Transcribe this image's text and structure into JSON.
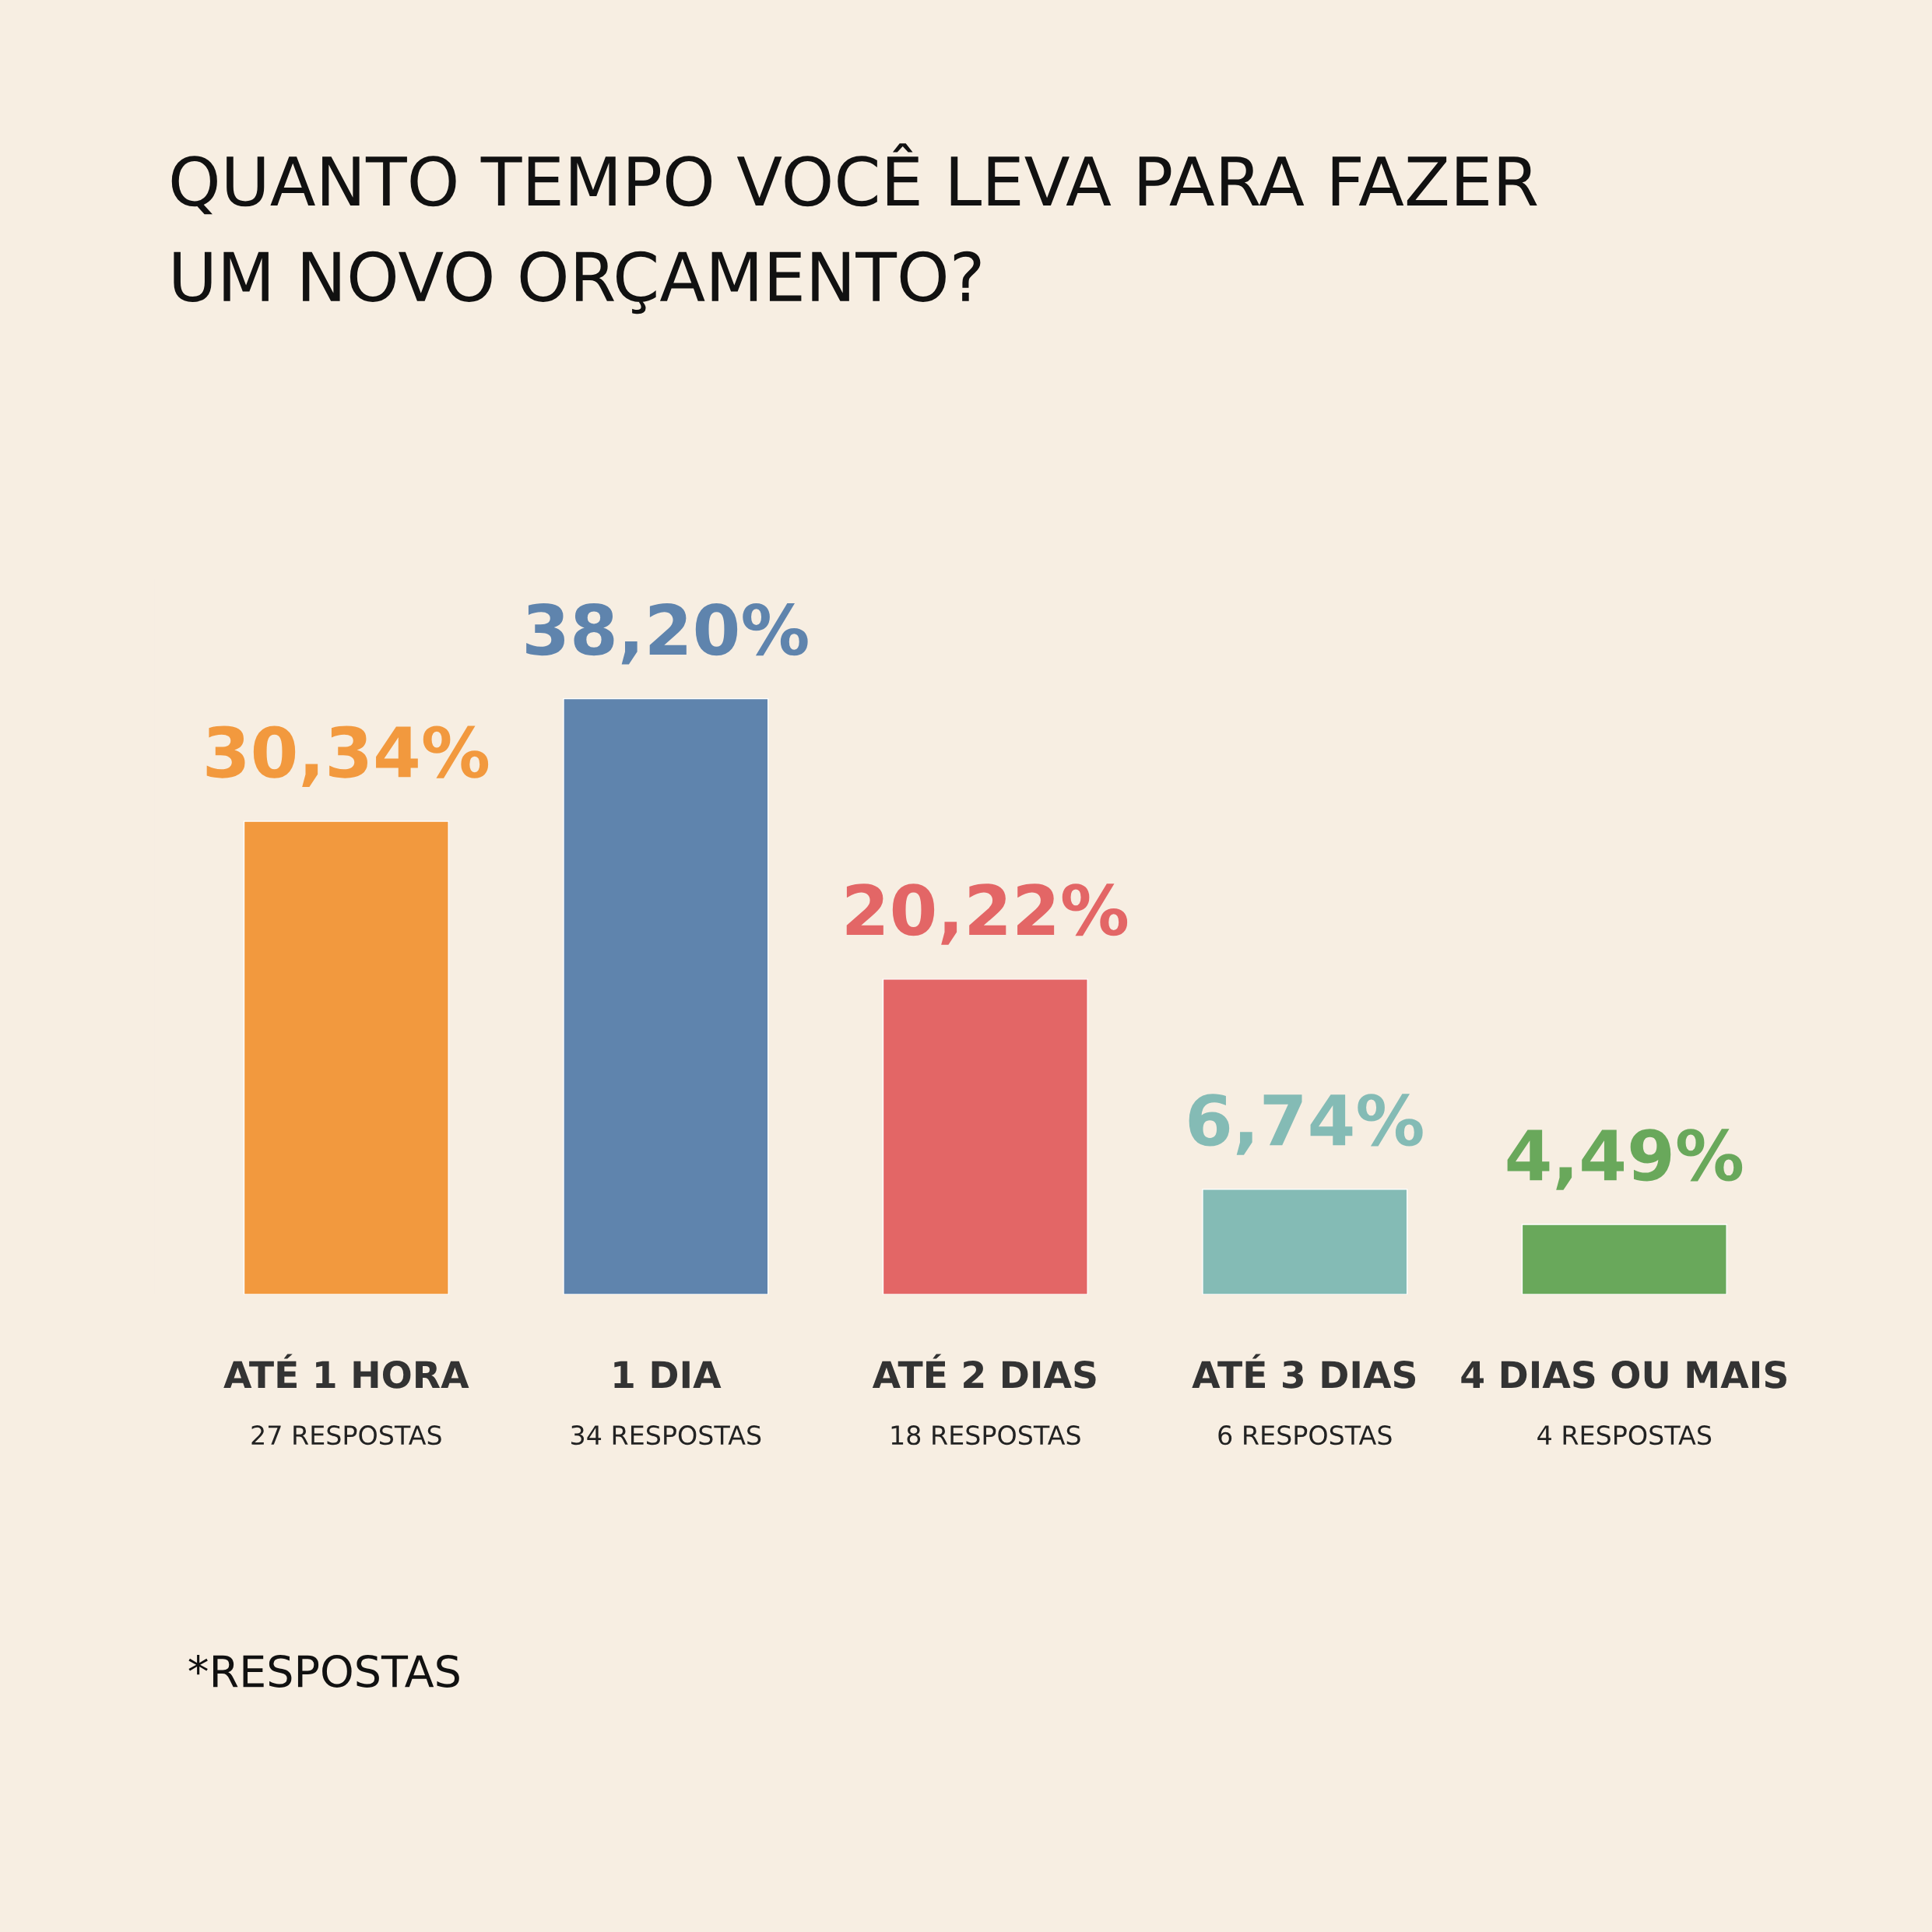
{
  "chart_data": {
    "type": "bar",
    "title": "QUANTO TEMPO VOCÊ LEVA PARA FAZER\nUM NOVO ORÇAMENTO?",
    "categories": [
      "ATÉ 1 HORA\n27 RESPOSTAS",
      "1 DIA\n34 RESPOSTAS",
      "ATÉ 2 DIAS\n18 RESPOSTAS",
      "ATÉ 3 DIAS\n6 RESPOSTAS",
      "4 DIAS OU MAIS\n4 RESPOSTAS"
    ],
    "values": [
      30.34,
      38.2,
      20.22,
      6.74,
      4.49
    ],
    "value_labels": [
      "30,34%",
      "38,20%",
      "20,22%",
      "6,74%",
      "4,49%"
    ],
    "colors": [
      "#f2993e",
      "#5f84ad",
      "#e36666",
      "#84bbb5",
      "#69a85b"
    ],
    "annotations": [
      "*RESPOSTAS"
    ],
    "grid": false,
    "legend": false
  }
}
